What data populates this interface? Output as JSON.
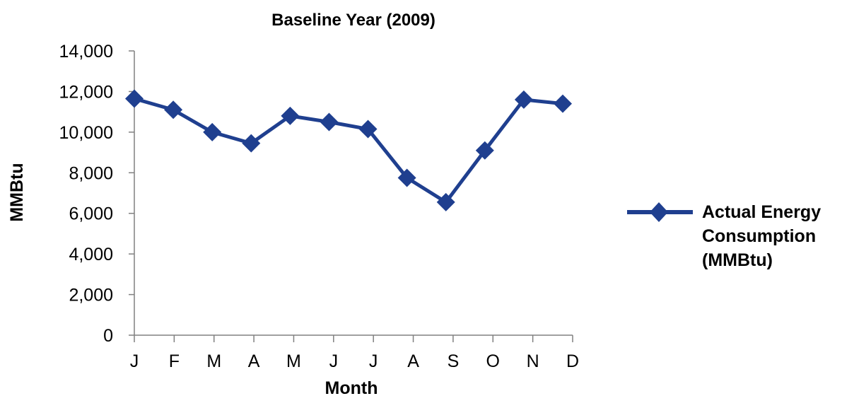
{
  "chart_data": {
    "type": "line",
    "title": "Baseline Year (2009)",
    "xlabel": "Month",
    "ylabel": "MMBtu",
    "categories": [
      "J",
      "F",
      "M",
      "A",
      "M",
      "J",
      "J",
      "A",
      "S",
      "O",
      "N",
      "D"
    ],
    "ylim": [
      0,
      14000
    ],
    "yticks": [
      0,
      2000,
      4000,
      6000,
      8000,
      10000,
      12000,
      14000
    ],
    "ytick_labels": [
      "0",
      "2,000",
      "4,000",
      "6,000",
      "8,000",
      "10,000",
      "12,000",
      "14,000"
    ],
    "grid": false,
    "legend_position": "right",
    "series": [
      {
        "name_lines": [
          "Actual Energy",
          "Consumption",
          "(MMBtu)"
        ],
        "color": "#1f3f8f",
        "marker": "diamond",
        "values": [
          11650,
          11100,
          10000,
          9450,
          10800,
          10500,
          10150,
          7750,
          6550,
          9100,
          11600,
          11400
        ]
      }
    ]
  }
}
